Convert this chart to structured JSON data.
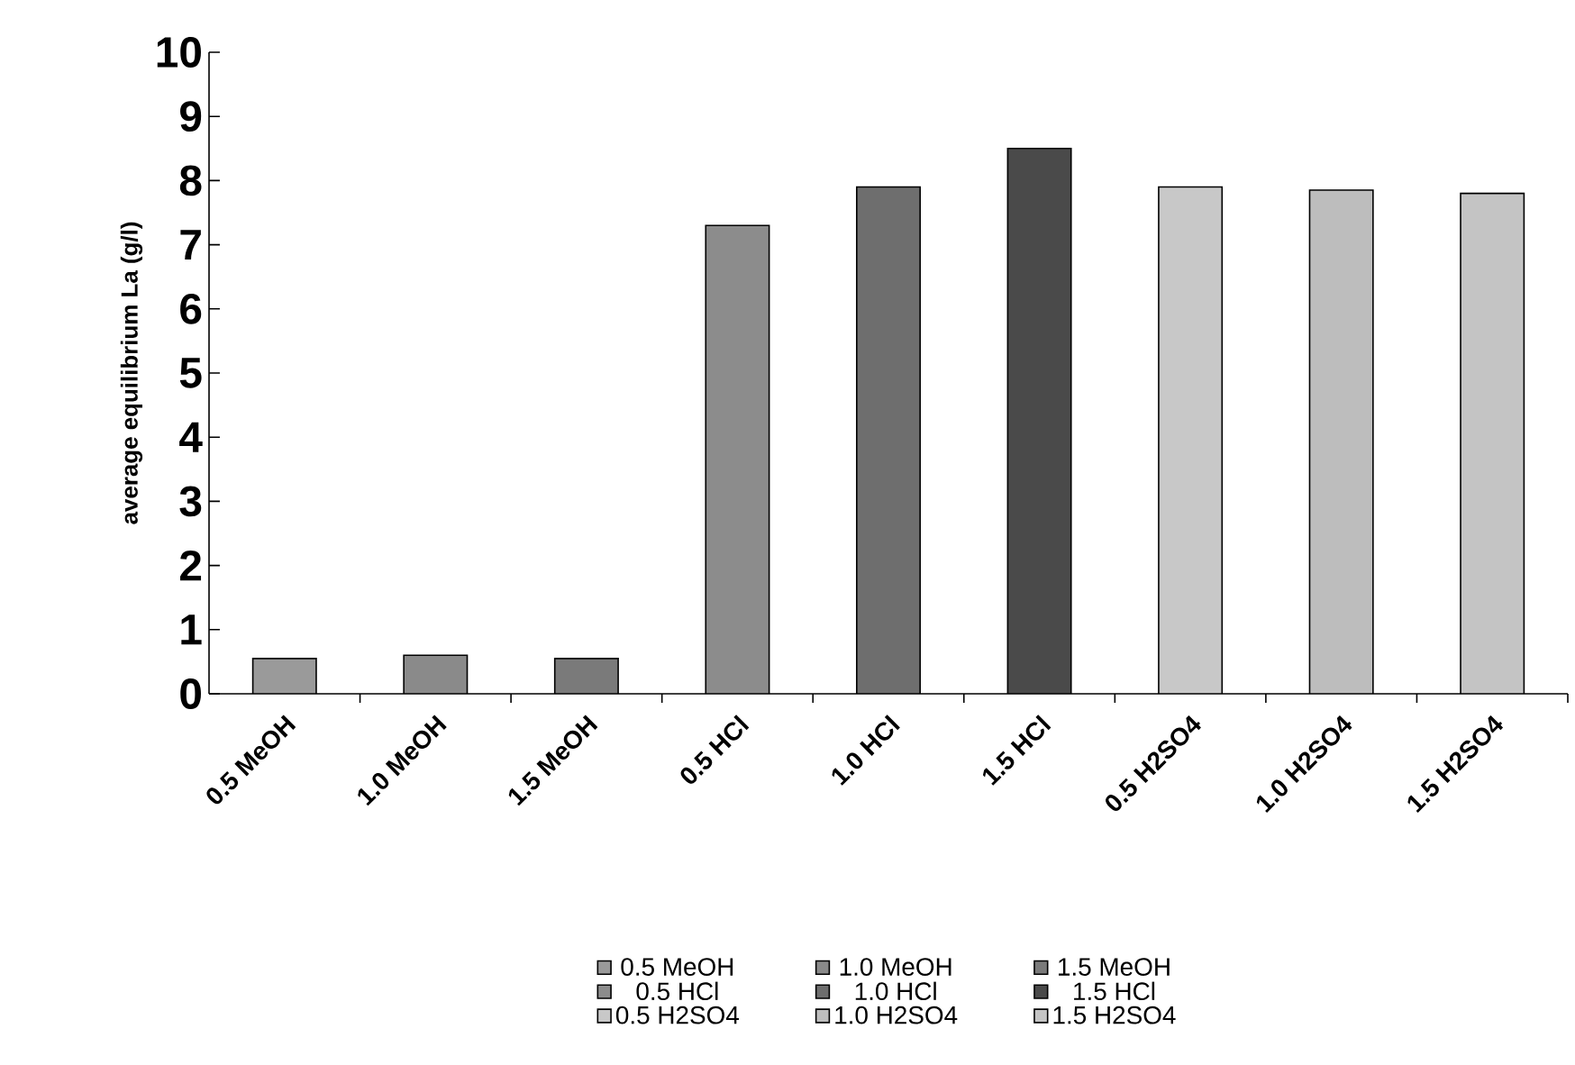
{
  "chart_data": {
    "type": "bar",
    "ylabel": "average equilibrium La (g/l)",
    "categories": [
      "0.5 MeOH",
      "1.0 MeOH",
      "1.5 MeOH",
      "0.5 HCl",
      "1.0 HCl",
      "1.5 HCl",
      "0.5 H2SO4",
      "1.0 H2SO4",
      "1.5 H2SO4"
    ],
    "series": [
      {
        "name": "0.5 MeOH",
        "color": "#9a9a9a",
        "values": [
          0.55,
          null,
          null,
          null,
          null,
          null,
          null,
          null,
          null
        ]
      },
      {
        "name": "1.0 MeOH",
        "color": "#8a8a8a",
        "values": [
          null,
          0.6,
          null,
          null,
          null,
          null,
          null,
          null,
          null
        ]
      },
      {
        "name": "1.5 MeOH",
        "color": "#7a7a7a",
        "values": [
          null,
          null,
          0.55,
          null,
          null,
          null,
          null,
          null,
          null
        ]
      },
      {
        "name": "0.5 HCl",
        "color": "#8c8c8c",
        "values": [
          null,
          null,
          null,
          7.3,
          null,
          null,
          null,
          null,
          null
        ]
      },
      {
        "name": "1.0 HCl",
        "color": "#6e6e6e",
        "values": [
          null,
          null,
          null,
          null,
          7.9,
          null,
          null,
          null,
          null
        ]
      },
      {
        "name": "1.5 HCl",
        "color": "#4a4a4a",
        "values": [
          null,
          null,
          null,
          null,
          null,
          8.5,
          null,
          null,
          null
        ]
      },
      {
        "name": "0.5 H2SO4",
        "color": "#c8c8c8",
        "values": [
          null,
          null,
          null,
          null,
          null,
          null,
          7.9,
          null,
          null
        ]
      },
      {
        "name": "1.0 H2SO4",
        "color": "#bdbdbd",
        "values": [
          null,
          null,
          null,
          null,
          null,
          null,
          null,
          7.85,
          null
        ]
      },
      {
        "name": "1.5 H2SO4",
        "color": "#c4c4c4",
        "values": [
          null,
          null,
          null,
          null,
          null,
          null,
          null,
          null,
          7.8
        ]
      }
    ],
    "ylim": [
      0,
      10
    ],
    "yticks": [
      0,
      1,
      2,
      3,
      4,
      5,
      6,
      7,
      8,
      9,
      10
    ],
    "grid": false,
    "legend": "bottom"
  }
}
